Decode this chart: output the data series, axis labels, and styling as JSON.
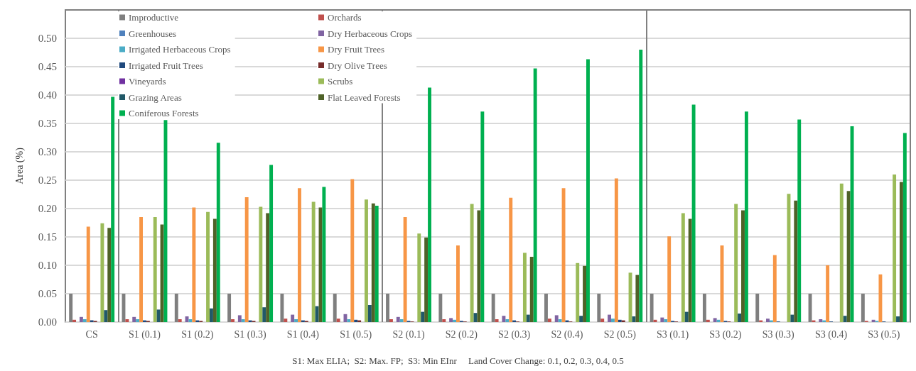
{
  "chart_data": {
    "type": "bar",
    "ylabel": "Area (%)",
    "categories": [
      "CS",
      "S1 (0.1)",
      "S1 (0.2)",
      "S1 (0.3)",
      "S1 (0.4)",
      "S1 (0.5)",
      "S2 (0.1)",
      "S2 (0.2)",
      "S2 (0.3)",
      "S2 (0.4)",
      "S2 (0.5)",
      "S3 (0.1)",
      "S3 (0.2)",
      "S3 (0.3)",
      "S3 (0.4)",
      "S3 (0.5)"
    ],
    "series": [
      {
        "name": "Improductive",
        "color": "#7f7f7f",
        "values": [
          0.05,
          0.05,
          0.05,
          0.05,
          0.05,
          0.05,
          0.05,
          0.05,
          0.05,
          0.05,
          0.05,
          0.05,
          0.05,
          0.05,
          0.05,
          0.05
        ]
      },
      {
        "name": "Orchards",
        "color": "#c0504d",
        "values": [
          0.004,
          0.005,
          0.005,
          0.005,
          0.006,
          0.006,
          0.005,
          0.005,
          0.005,
          0.006,
          0.006,
          0.004,
          0.004,
          0.003,
          0.003,
          0.002
        ]
      },
      {
        "name": "Greenhouses",
        "color": "#4f81bd",
        "values": [
          0,
          0,
          0,
          0,
          0,
          0,
          0,
          0,
          0,
          0,
          0,
          0,
          0,
          0,
          0,
          0
        ]
      },
      {
        "name": "Dry Herbaceous Crops",
        "color": "#8064a2",
        "values": [
          0.009,
          0.009,
          0.01,
          0.012,
          0.013,
          0.014,
          0.009,
          0.007,
          0.011,
          0.012,
          0.013,
          0.008,
          0.007,
          0.006,
          0.005,
          0.004
        ]
      },
      {
        "name": "Irrigated Herbaceous Crops",
        "color": "#4bacc6",
        "values": [
          0.005,
          0.005,
          0.005,
          0.005,
          0.005,
          0.005,
          0.005,
          0.004,
          0.005,
          0.005,
          0.006,
          0.005,
          0.004,
          0.003,
          0.003,
          0.002
        ]
      },
      {
        "name": "Dry Fruit Trees",
        "color": "#f79646",
        "values": [
          0.168,
          0.185,
          0.202,
          0.22,
          0.236,
          0.252,
          0.185,
          0.135,
          0.219,
          0.236,
          0.253,
          0.151,
          0.135,
          0.118,
          0.1,
          0.084
        ]
      },
      {
        "name": "Irrigated Fruit Trees",
        "color": "#1f497d",
        "values": [
          0.003,
          0.003,
          0.003,
          0.003,
          0.003,
          0.004,
          0.002,
          0.002,
          0.003,
          0.003,
          0.004,
          0.002,
          0.002,
          0.001,
          0.001,
          0.001
        ]
      },
      {
        "name": "Dry Olive Trees",
        "color": "#772c2a",
        "values": [
          0.002,
          0.002,
          0.002,
          0.002,
          0.002,
          0.003,
          0.001,
          0.001,
          0.001,
          0.001,
          0.003,
          0.001,
          0.001,
          0,
          0,
          0
        ]
      },
      {
        "name": "Vineyards",
        "color": "#7030a0",
        "values": [
          0,
          0,
          0,
          0,
          0,
          0,
          0,
          0,
          0,
          0,
          0,
          0,
          0,
          0,
          0,
          0
        ]
      },
      {
        "name": "Scrubs",
        "color": "#9bbb59",
        "values": [
          0.174,
          0.185,
          0.194,
          0.203,
          0.212,
          0.216,
          0.156,
          0.208,
          0.122,
          0.104,
          0.087,
          0.192,
          0.208,
          0.226,
          0.244,
          0.26
        ]
      },
      {
        "name": "Grazing Areas",
        "color": "#215968",
        "values": [
          0.021,
          0.022,
          0.024,
          0.026,
          0.028,
          0.03,
          0.018,
          0.016,
          0.013,
          0.011,
          0.01,
          0.018,
          0.015,
          0.013,
          0.011,
          0.01
        ]
      },
      {
        "name": "Flat Leaved Forests",
        "color": "#4f6228",
        "values": [
          0.166,
          0.172,
          0.182,
          0.192,
          0.202,
          0.209,
          0.149,
          0.197,
          0.115,
          0.099,
          0.083,
          0.182,
          0.197,
          0.214,
          0.231,
          0.247
        ]
      },
      {
        "name": "Coniferous Forests",
        "color": "#00b050",
        "values": [
          0.397,
          0.356,
          0.316,
          0.277,
          0.238,
          0.205,
          0.413,
          0.371,
          0.447,
          0.463,
          0.48,
          0.383,
          0.371,
          0.357,
          0.345,
          0.333
        ]
      }
    ],
    "ylim": [
      0,
      0.55
    ],
    "yticks": [
      {
        "value": 0,
        "label": "0.00"
      },
      {
        "value": 0.05,
        "label": "0.05"
      },
      {
        "value": 0.1,
        "label": "0.10"
      },
      {
        "value": 0.15,
        "label": "0.15"
      },
      {
        "value": 0.2,
        "label": "0.20"
      },
      {
        "value": 0.25,
        "label": "0.25"
      },
      {
        "value": 0.3,
        "label": "0.30"
      },
      {
        "value": 0.35,
        "label": "0.35"
      },
      {
        "value": 0.4,
        "label": "0.40"
      },
      {
        "value": 0.45,
        "label": "0.45"
      },
      {
        "value": 0.5,
        "label": "0.50"
      }
    ],
    "grid": "y",
    "legend": "top left",
    "annotations": [
      "S1: Max ELIA;  S2: Max. FP;  S3: Min EInr     Land Cover Change: 0.1, 0.2, 0.3, 0.4, 0.5"
    ]
  }
}
